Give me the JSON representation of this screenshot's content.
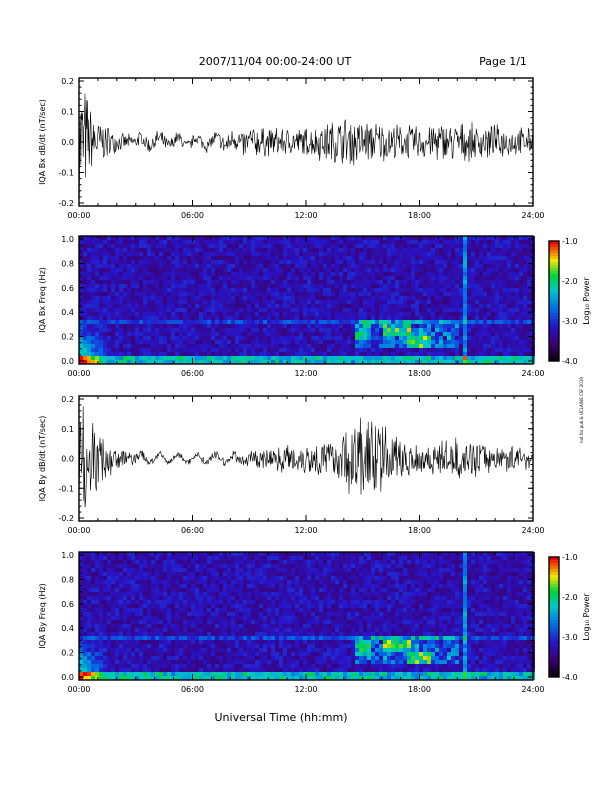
{
  "header": {
    "title": "2007/11/04  00:00-24:00 UT",
    "page": "Page 1/1"
  },
  "footer": {
    "xlabel": "Universal Time (hh:mm)"
  },
  "side_credit": "not for pub & UCLA/NS CSF 2019",
  "chart_data": [
    {
      "type": "line",
      "ylabel": "IQA Bx dB/dt (nT/sec)",
      "xlabel": "",
      "xlim": [
        "00:00",
        "24:00"
      ],
      "x_ticks": [
        "00:00",
        "06:00",
        "12:00",
        "18:00",
        "24:00"
      ],
      "ylim": [
        -0.2,
        0.2
      ],
      "y_ticks": [
        "0.2",
        "0.1",
        "0.0",
        "-0.1",
        "-0.2"
      ],
      "series": [
        {
          "hours": [
            0,
            0.3,
            0.5,
            1,
            1.5,
            2,
            3,
            4,
            5,
            6,
            7,
            8,
            9,
            10,
            11,
            12,
            13,
            14,
            15,
            16,
            17,
            18,
            19,
            20,
            21,
            22,
            23,
            24
          ],
          "envelope": [
            0.25,
            0.2,
            0.15,
            0.08,
            0.06,
            0.03,
            0.025,
            0.03,
            0.025,
            0.02,
            0.025,
            0.04,
            0.06,
            0.05,
            0.05,
            0.05,
            0.07,
            0.09,
            0.08,
            0.07,
            0.06,
            0.06,
            0.07,
            0.07,
            0.06,
            0.06,
            0.05,
            0.05
          ]
        }
      ]
    },
    {
      "type": "heatmap",
      "ylabel": "IQA Bx Freq (Hz)",
      "xlim": [
        "00:00",
        "24:00"
      ],
      "x_ticks": [
        "00:00",
        "06:00",
        "12:00",
        "18:00",
        "24:00"
      ],
      "ylim": [
        0.0,
        1.0
      ],
      "y_ticks": [
        "1.0",
        "0.8",
        "0.6",
        "0.4",
        "0.2",
        "0.0"
      ],
      "colorbar": {
        "label": "Log₁₀ Power",
        "range": [
          -4.0,
          -1.0
        ],
        "ticks": [
          "-1.0",
          "-2.0",
          "-3.0",
          "-4.0"
        ]
      }
    },
    {
      "type": "line",
      "ylabel": "IQA By dB/dt (nT/sec)",
      "xlabel": "",
      "xlim": [
        "00:00",
        "24:00"
      ],
      "x_ticks": [
        "00:00",
        "06:00",
        "12:00",
        "18:00",
        "24:00"
      ],
      "ylim": [
        -0.2,
        0.2
      ],
      "y_ticks": [
        "0.2",
        "0.1",
        "0.0",
        "-0.1",
        "-0.2"
      ],
      "series": [
        {
          "hours": [
            0,
            0.3,
            0.5,
            1,
            1.5,
            2,
            3,
            4,
            5,
            6,
            7,
            8,
            9,
            10,
            11,
            12,
            13,
            14,
            15,
            16,
            17,
            18,
            19,
            20,
            21,
            22,
            23,
            24
          ],
          "envelope": [
            0.25,
            0.22,
            0.18,
            0.1,
            0.08,
            0.04,
            0.02,
            0.015,
            0.01,
            0.01,
            0.015,
            0.02,
            0.03,
            0.04,
            0.05,
            0.06,
            0.07,
            0.09,
            0.2,
            0.12,
            0.08,
            0.06,
            0.06,
            0.07,
            0.06,
            0.05,
            0.045,
            0.04
          ]
        }
      ]
    },
    {
      "type": "heatmap",
      "ylabel": "IQA By Freq (Hz)",
      "xlim": [
        "00:00",
        "24:00"
      ],
      "x_ticks": [
        "00:00",
        "06:00",
        "12:00",
        "18:00",
        "24:00"
      ],
      "ylim": [
        0.0,
        1.0
      ],
      "y_ticks": [
        "1.0",
        "0.8",
        "0.6",
        "0.4",
        "0.2",
        "0.0"
      ],
      "colorbar": {
        "label": "Log₁₀ Power",
        "range": [
          -4.0,
          -1.0
        ],
        "ticks": [
          "-1.0",
          "-2.0",
          "-3.0",
          "-4.0"
        ]
      }
    }
  ]
}
